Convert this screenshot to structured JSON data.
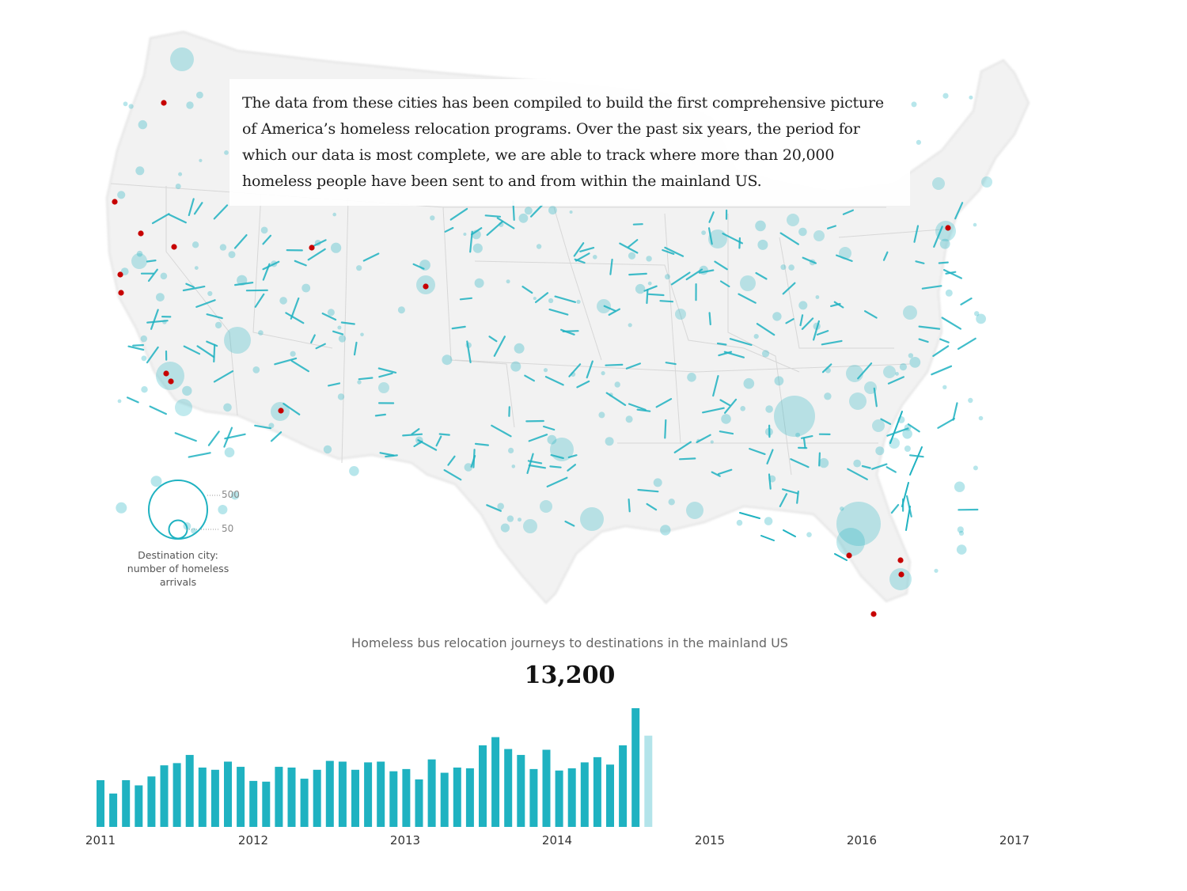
{
  "intro": {
    "text": "The data from these cities has been compiled to build the first comprehensive picture of America’s homeless relocation programs. Over the past six years, the period for which our data is most complete, we are able to track where more than 20,000 homeless people have been sent to and from within the mainland US."
  },
  "legend": {
    "large_value": "500",
    "small_value": "50",
    "caption": "Destination city: number of homeless arrivals"
  },
  "colors": {
    "accent": "#1fb2c1",
    "accent_light": "#b3e4ea",
    "origin": "#c70000",
    "land": "#f1f1f1"
  },
  "chart_data": {
    "type": "bar",
    "title": "Homeless bus relocation journeys to destinations in the mainland US",
    "headline_value": "13,200",
    "x_ticks": [
      "2011",
      "2012",
      "2013",
      "2014",
      "2015",
      "2016",
      "2017"
    ],
    "ylim": [
      0,
      160
    ],
    "values": [
      63,
      45,
      63,
      56,
      68,
      83,
      86,
      97,
      80,
      77,
      88,
      81,
      62,
      61,
      81,
      80,
      65,
      77,
      89,
      88,
      77,
      87,
      88,
      75,
      78,
      64,
      91,
      73,
      80,
      79,
      110,
      121,
      105,
      97,
      78,
      104,
      76,
      79,
      87,
      94,
      84,
      110,
      160
    ],
    "highlight_value": 123,
    "icons": {
      "origin_marker": "red-dot-icon",
      "destination_marker": "teal-circle-icon"
    }
  }
}
